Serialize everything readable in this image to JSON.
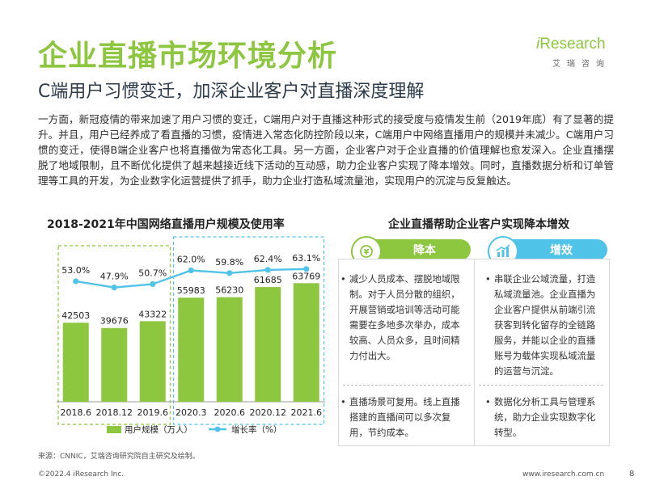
{
  "header": {
    "title": "企业直播市场环境分析",
    "subtitle": "C端用户习惯变迁，加深企业客户对直播深度理解"
  },
  "logo": {
    "brand_i": "i",
    "brand_rest": "Research",
    "brand_cn": "艾瑞咨询"
  },
  "paragraph": "一方面，新冠疫情的带来加速了用户习惯的变迁，C端用户对于直播这种形式的接受度与疫情发生前（2019年底）有了显著的提升。并且，用户已经养成了看直播的习惯，疫情进入常态化防控阶段以来，C端用户中网络直播用户的规模并未减少。C端用户习惯的变迁，使得B端企业客户也将直播做为常态化工具。另一方面，企业客户对于企业直播的价值理解也愈发深入。企业直播摆脱了地域限制，且不断优化提供了越来越接近线下活动的互动感，助力企业客户实现了降本增效。同时，直播数据分析和订单管理等工具的开发，为企业数字化运营提供了抓手，助力企业打造私域流量池，实现用户的沉淀与反复触达。",
  "chart_title": "2018-2021年中国网络直播用户规模及使用率",
  "chart_data": {
    "type": "bar",
    "categories": [
      "2018.6",
      "2018.12",
      "2019.6",
      "2020.3",
      "2020.6",
      "2020.12",
      "2021.6"
    ],
    "series": [
      {
        "name": "用户规模（万人）",
        "type": "bar",
        "values": [
          42503,
          39676,
          43322,
          55983,
          56230,
          61685,
          63769
        ],
        "labels": [
          "42503",
          "39676",
          "43322",
          "55983",
          "56230",
          "61685",
          "63769"
        ]
      },
      {
        "name": "增长率（%）",
        "type": "line",
        "values": [
          53.0,
          47.9,
          50.7,
          62.0,
          59.8,
          62.4,
          63.1
        ],
        "labels": [
          "53.0%",
          "47.9%",
          "50.7%",
          "62.0%",
          "59.8%",
          "62.4%",
          "63.1%"
        ]
      }
    ],
    "groups": [
      {
        "range": [
          "2018.6",
          "2019.6"
        ],
        "style": "dashed",
        "color": "#8DC63F"
      },
      {
        "range": [
          "2020.3",
          "2021.6"
        ],
        "style": "dashed",
        "color": "#4FC3E8"
      }
    ],
    "legend_position": "bottom",
    "grid": false
  },
  "right_panel": {
    "title": "企业直播帮助企业客户实现降本增效",
    "cards": [
      {
        "label": "降本",
        "color": "#8DC63F",
        "icon": "coin-down-icon",
        "bullets": [
          "减少人员成本、摆脱地域限制。对于人员分散的组织，开展营销或培训等活动可能需要在多地多次举办，成本较高、人员众多，且时间精力付出大。",
          "直播场景可复用。线上直播搭建的直播间可以多次复用，节约成本。"
        ]
      },
      {
        "label": "增效",
        "color": "#4FC3E8",
        "icon": "growth-chart-icon",
        "bullets": [
          "串联企业公域流量，打造私域流量池。企业直播为企业客户提供从前端引流获客到转化留存的全链路服务，并能以企业的直播账号为载体实现私域流量的运营与沉淀。",
          "数据化分析工具与管理系统，助力企业实现数字化转型。"
        ]
      }
    ]
  },
  "footer": {
    "source": "来源：CNNIC，艾瑞咨询研究院自主研究及绘制。",
    "copyright": "©2022.4 iResearch Inc.",
    "site": "www.iresearch.com.cn",
    "page": "8"
  },
  "colors": {
    "green": "#8DC63F",
    "blue": "#4FC3E8",
    "line": "#4FC3E8"
  }
}
